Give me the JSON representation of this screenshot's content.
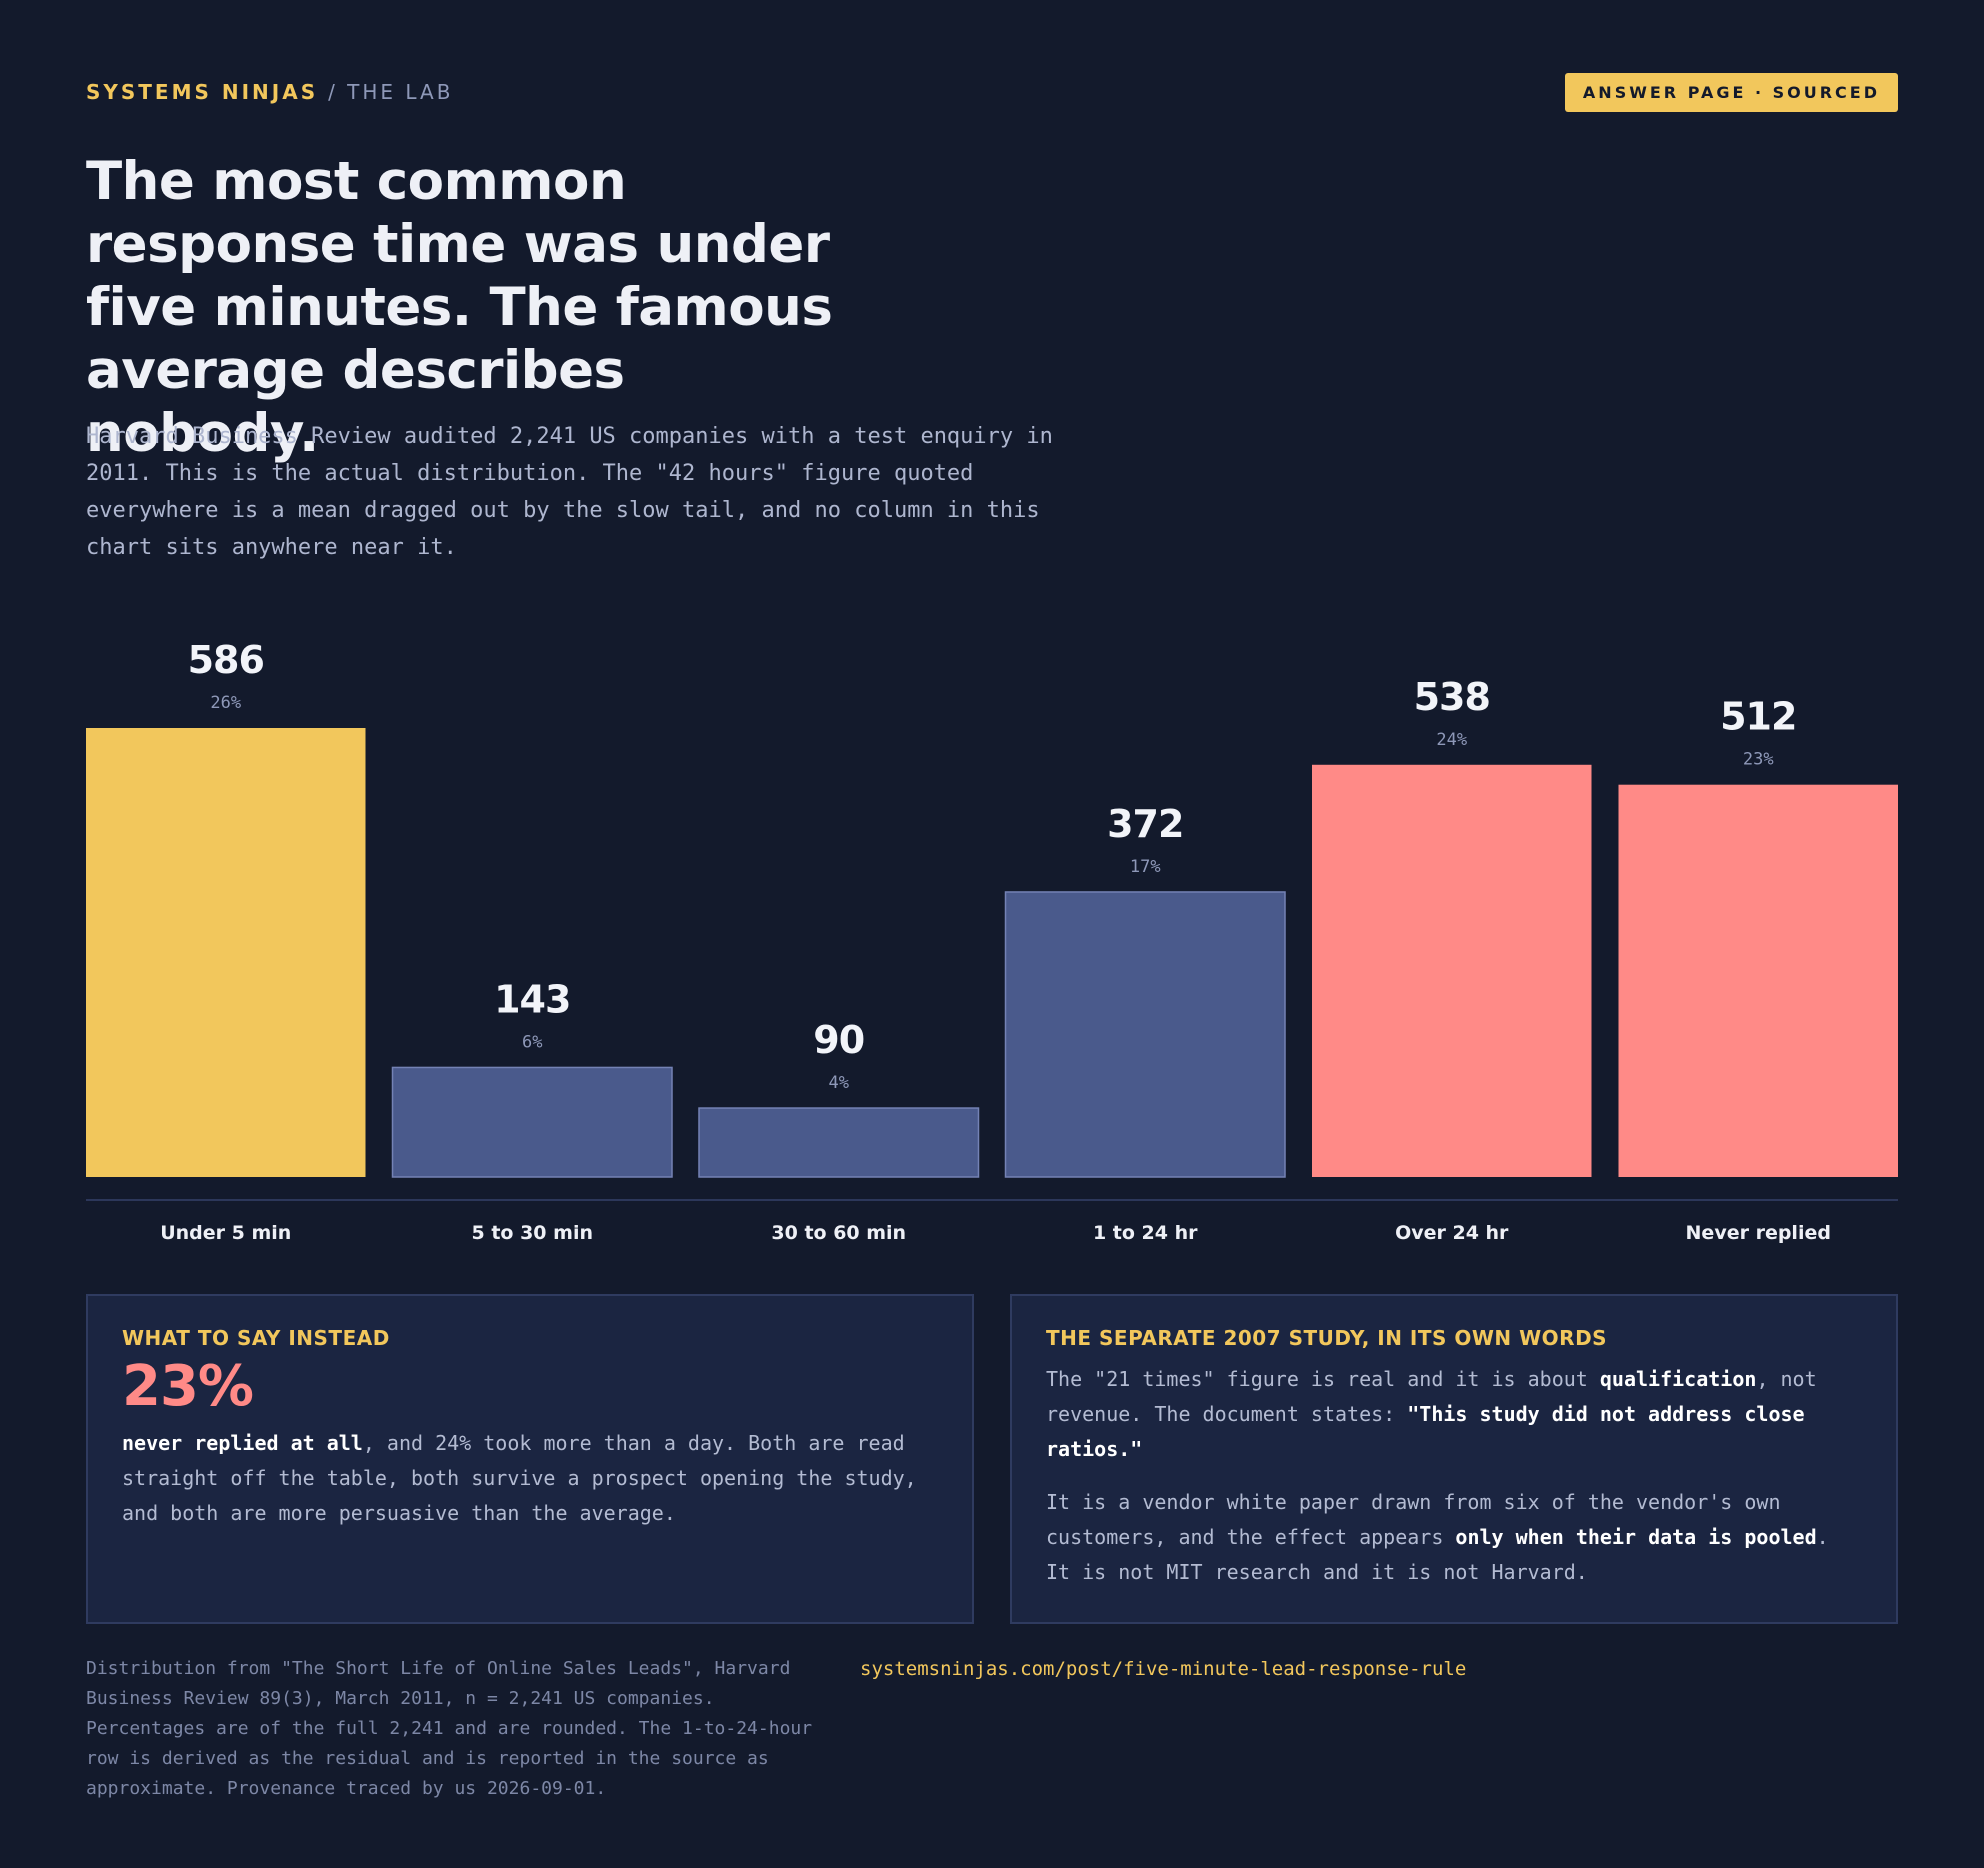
{
  "header": {
    "brand": "SYSTEMS NINJAS",
    "section": "/ THE LAB",
    "tag": "ANSWER PAGE · SOURCED"
  },
  "headline": "The most common response time was under five minutes. The famous average describes nobody.",
  "lede": "Harvard Business Review audited 2,241 US companies with a test enquiry in 2011. This is the actual distribution. The \"42 hours\" figure quoted everywhere is a mean dragged out by the slow tail, and no column in this chart sits anywhere near it.",
  "colors": {
    "background": "#131a2c",
    "accent": "#f2c75c",
    "neutral_bar": "#4a5a8c",
    "neutral_bar_stroke": "#7482b5",
    "slow_bar": "#ff8a87",
    "muted_text": "#8e98b8"
  },
  "chart_data": {
    "type": "bar",
    "categories": [
      "Under 5 min",
      "5 to 30 min",
      "30 to 60 min",
      "1 to 24 hr",
      "Over 24 hr",
      "Never replied"
    ],
    "values": [
      586,
      143,
      90,
      372,
      538,
      512
    ],
    "percent_labels": [
      "26%",
      "6%",
      "4%",
      "17%",
      "24%",
      "23%"
    ],
    "bar_colors": [
      "#f2c75c",
      "#4a5a8c",
      "#4a5a8c",
      "#4a5a8c",
      "#ff8a87",
      "#ff8a87"
    ],
    "title": "",
    "xlabel": "",
    "ylabel": "",
    "ylim": [
      0,
      586
    ],
    "grid": false,
    "legend": "none"
  },
  "cards": {
    "left": {
      "title": "WHAT TO SAY INSTEAD",
      "stat": "23%",
      "text_bold": "never replied at all",
      "text_rest": ", and 24% took more than a day. Both are read straight off the table, both survive a prospect opening the study, and both are more persuasive than the average."
    },
    "right": {
      "title": "THE SEPARATE 2007 STUDY, IN ITS OWN WORDS",
      "p1_a": "The \"21 times\" figure is real and it is about ",
      "p1_b": "qualification",
      "p1_c": ", not revenue. The document states: ",
      "p1_d": "\"This study did not address close ratios.\"",
      "p2_a": "It is a vendor white paper drawn from six of the vendor's own customers, and the effect appears ",
      "p2_b": "only when their data is pooled",
      "p2_c": ". It is not MIT research and it is not Harvard."
    }
  },
  "footer": {
    "note": "Distribution from \"The Short Life of Online Sales Leads\", Harvard Business Review 89(3), March 2011, n = 2,241 US companies. Percentages are of the full 2,241 and are rounded. The 1-to-24-hour row is derived as the residual and is reported in the source as approximate. Provenance traced by us 2026-09-01.",
    "link": "systemsninjas.com/post/five-minute-lead-response-rule"
  }
}
